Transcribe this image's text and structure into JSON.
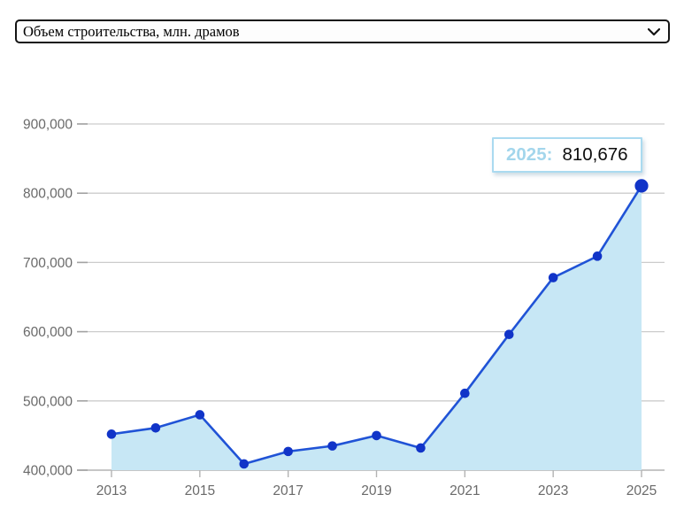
{
  "select": {
    "value": "Объем строительства, млн. драмов"
  },
  "tooltip": {
    "year_label": "2025:",
    "value": "810,676"
  },
  "chart_data": {
    "type": "area",
    "title": "Объем строительства, млн. драмов",
    "x": [
      2013,
      2014,
      2015,
      2016,
      2017,
      2018,
      2019,
      2020,
      2021,
      2022,
      2023,
      2024,
      2025
    ],
    "values": [
      452000,
      461000,
      480000,
      409000,
      427000,
      435000,
      450000,
      432000,
      511000,
      596000,
      678000,
      709000,
      810676
    ],
    "xlabel": "",
    "ylabel": "",
    "ylim": [
      400000,
      900000
    ],
    "ytick_step": 100000,
    "xlabel_every": 2,
    "grid": true,
    "legend": false,
    "highlight_index": 12,
    "highlight_value_label": "810,676",
    "colors": {
      "line": "#2053d6",
      "point": "#1134c8",
      "area": "#c7e7f5",
      "grid": "#cccccc",
      "axis_line": "#b3b3b3",
      "tick": "#a2a2a2",
      "axis_text": "#6a6a6a",
      "tooltip_border": "#aadaf0",
      "tooltip_year": "#a3d6ec"
    }
  }
}
